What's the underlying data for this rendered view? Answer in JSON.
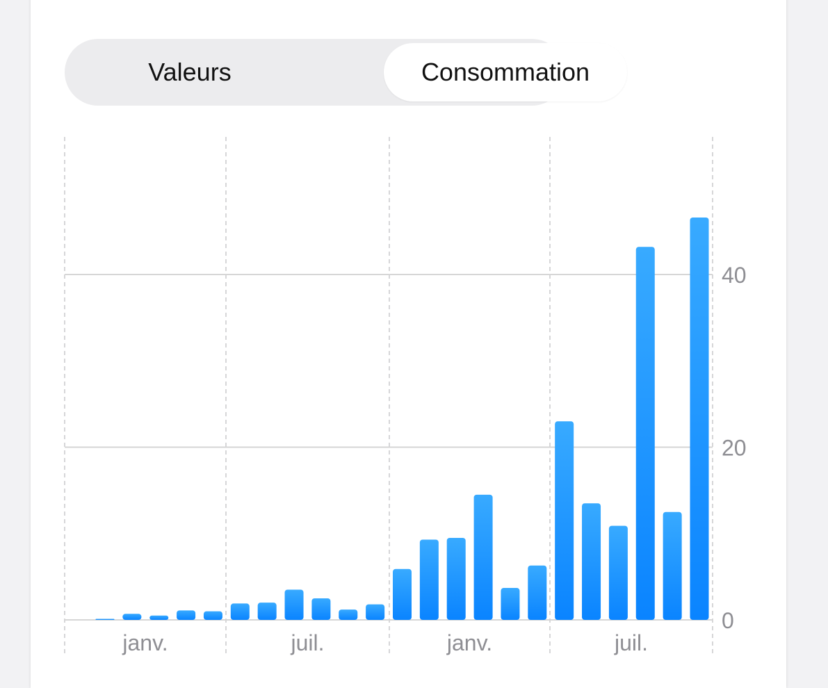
{
  "segmented_control": {
    "options": [
      "Valeurs",
      "Consommation"
    ],
    "selected": "Consommation"
  },
  "colors": {
    "bar_top": "#38aaff",
    "bar_bottom": "#0a84ff",
    "grid": "#d6d6d6",
    "axis_text": "#8e8e93"
  },
  "chart_data": {
    "type": "bar",
    "title": "",
    "xlabel": "",
    "ylabel": "",
    "x_tick_labels": [
      "janv.",
      "juil.",
      "janv.",
      "juil."
    ],
    "values": [
      0.1,
      0.7,
      0.5,
      1.1,
      1.0,
      1.9,
      2.0,
      3.5,
      2.5,
      1.2,
      1.8,
      5.9,
      9.3,
      9.5,
      14.5,
      3.7,
      6.3,
      23.0,
      13.5,
      10.9,
      43.2,
      12.5,
      46.6
    ],
    "ylim": [
      0,
      50
    ],
    "y_ticks": [
      0,
      20,
      40
    ],
    "grid": true,
    "y_axis_position": "right"
  }
}
